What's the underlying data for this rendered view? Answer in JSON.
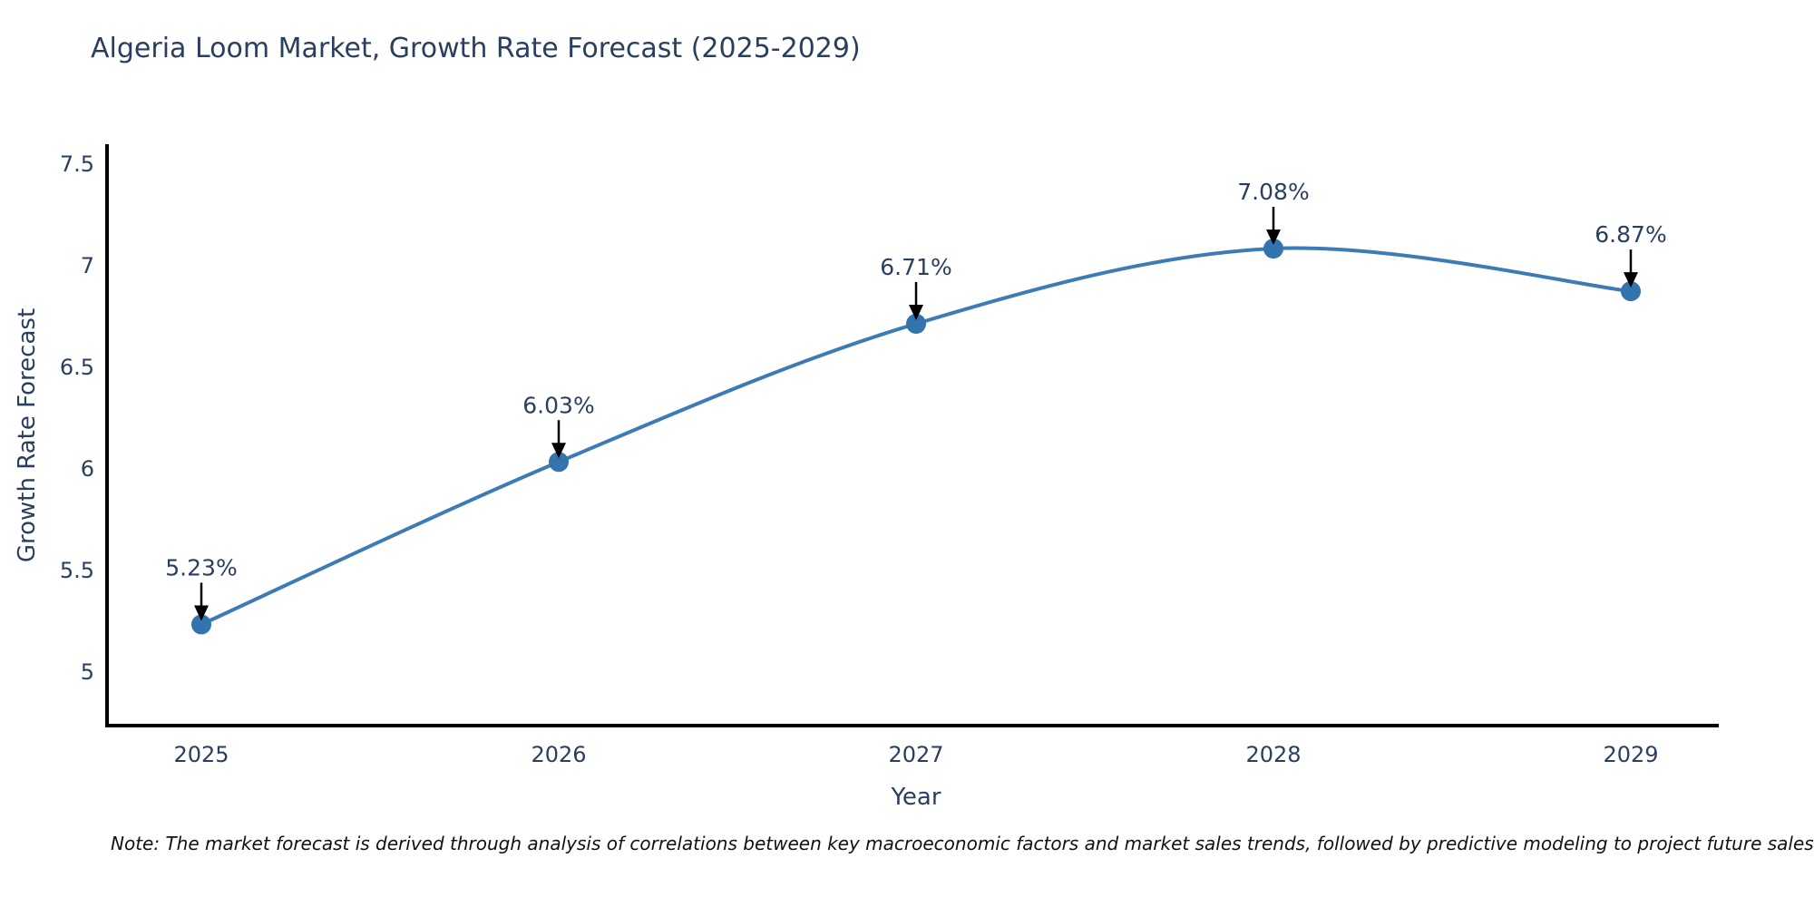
{
  "page": {
    "background": "#ffffff"
  },
  "chart_data": {
    "type": "line",
    "title": "Algeria Loom Market, Growth Rate Forecast (2025-2029)",
    "xlabel": "Year",
    "ylabel": "Growth Rate Forecast",
    "categories": [
      "2025",
      "2026",
      "2027",
      "2028",
      "2029"
    ],
    "values": [
      5.23,
      6.03,
      6.71,
      7.08,
      6.87
    ],
    "point_labels": [
      "5.23%",
      "6.03%",
      "6.71%",
      "7.08%",
      "6.87%"
    ],
    "ytick_labels": [
      "7.5",
      "7",
      "6.5",
      "6",
      "5.5",
      "5"
    ],
    "ytick_values": [
      7.5,
      7.0,
      6.5,
      6.0,
      5.5,
      5.0
    ],
    "ylim": [
      4.73,
      7.59
    ],
    "grid": false,
    "legend_position": "none",
    "line_color": "#3c7bb6",
    "marker_color": "#3374ae",
    "arrow_color": "#000000",
    "axis_color": "#000000",
    "text_color": "#2a3f5f",
    "note": "Note: The market forecast is derived through analysis of correlations between key macroeconomic factors and market sales trends, followed by predictive modeling to project future sales"
  }
}
